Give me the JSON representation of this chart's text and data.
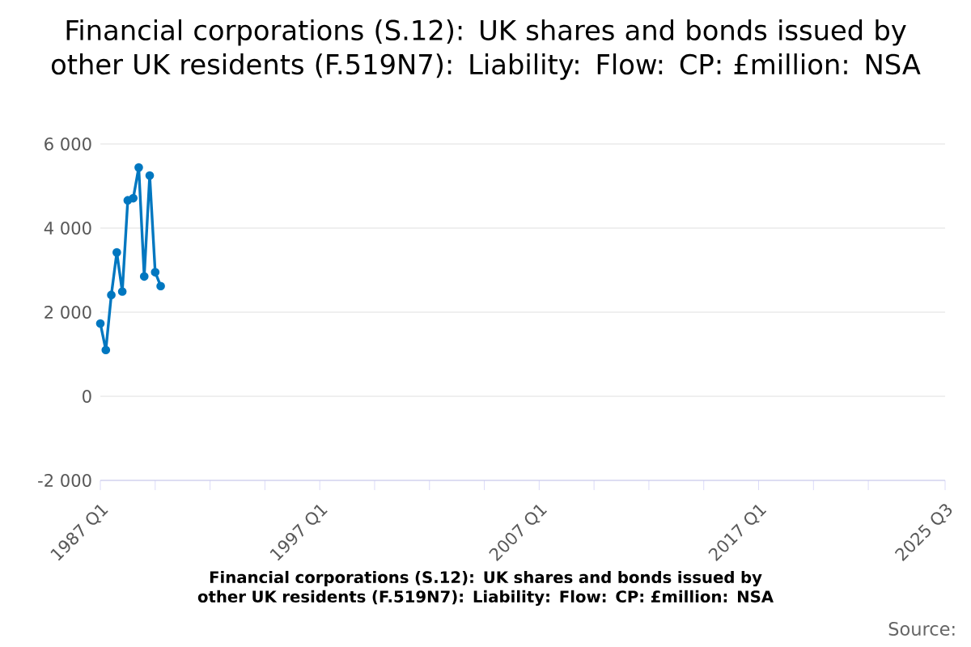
{
  "chart_data": {
    "type": "line",
    "title": "Financial corporations (S.12): UK shares and bonds issued by other UK residents (F.519N7): Liability: Flow: CP: £million: NSA",
    "xlabel": "Financial corporations (S.12): UK shares and bonds issued by other UK residents (F.519N7): Liability: Flow: CP: £million: NSA",
    "annotations": [
      "Source:"
    ],
    "x": [
      "1987-01",
      "1987-04",
      "1987-07",
      "1987-10",
      "1988-01",
      "1988-04",
      "1988-07",
      "1988-10",
      "1989-01",
      "1989-04",
      "1989-07",
      "1989-10"
    ],
    "series": [
      {
        "color": "#0077c0",
        "values": [
          1730,
          1100,
          2410,
          3420,
          2490,
          4660,
          4710,
          5440,
          2850,
          5250,
          2950,
          2620
        ]
      }
    ],
    "xlim": [
      "1987-01",
      "2025-07"
    ],
    "xticks": [
      {
        "value": "1987-01",
        "label": "1987 Q1"
      },
      {
        "value": "1989-07",
        "label": null
      },
      {
        "value": "1992-01",
        "label": null
      },
      {
        "value": "1994-07",
        "label": null
      },
      {
        "value": "1997-01",
        "label": "1997 Q1"
      },
      {
        "value": "1999-07",
        "label": null
      },
      {
        "value": "2002-01",
        "label": null
      },
      {
        "value": "2004-07",
        "label": null
      },
      {
        "value": "2007-01",
        "label": "2007 Q1"
      },
      {
        "value": "2009-07",
        "label": null
      },
      {
        "value": "2012-01",
        "label": null
      },
      {
        "value": "2014-07",
        "label": null
      },
      {
        "value": "2017-01",
        "label": "2017 Q1"
      },
      {
        "value": "2019-07",
        "label": null
      },
      {
        "value": "2022-01",
        "label": null
      },
      {
        "value": "2025-07",
        "label": "2025 Q3"
      }
    ],
    "ylim": [
      -2000,
      6000
    ],
    "yticks": [
      {
        "value": -2000,
        "label": "-2 000"
      },
      {
        "value": 0,
        "label": "0"
      },
      {
        "value": 2000,
        "label": "2 000"
      },
      {
        "value": 4000,
        "label": "4 000"
      },
      {
        "value": 6000,
        "label": "6 000"
      }
    ],
    "grid": "y",
    "marker": "circle",
    "line_style": "solid"
  }
}
